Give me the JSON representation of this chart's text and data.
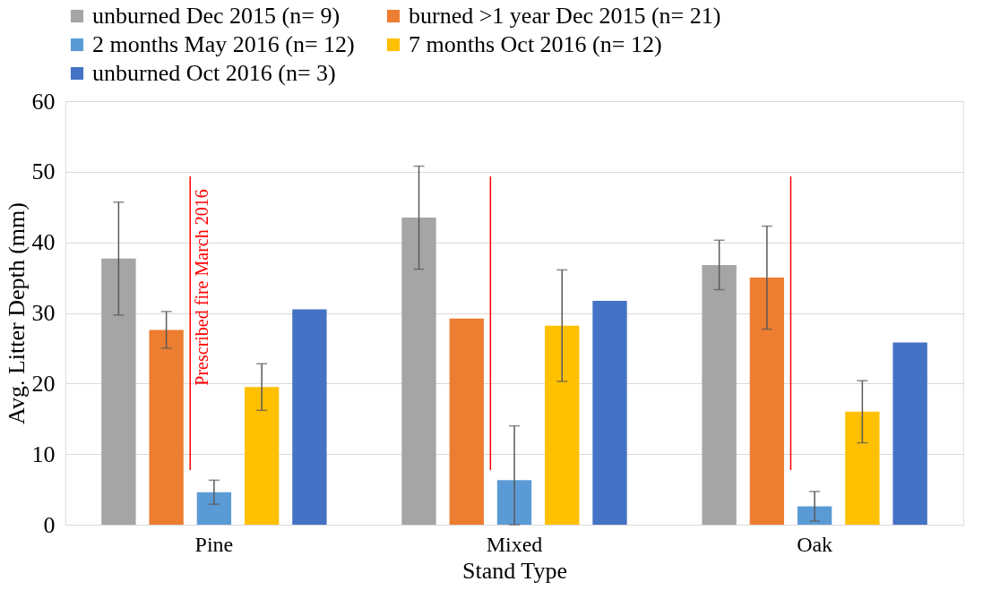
{
  "chart_data": {
    "type": "bar",
    "xlabel": "Stand Type",
    "ylabel": "Avg. Litter Depth (mm)",
    "categories": [
      "Pine",
      "Mixed",
      "Oak"
    ],
    "series": [
      {
        "name": "unburned Dec 2015  (n= 9)",
        "color": "#a5a5a5",
        "values": [
          37.7,
          43.5,
          36.8
        ],
        "errors": [
          8.0,
          7.3,
          3.5
        ]
      },
      {
        "name": "burned >1 year Dec 2015 (n= 21)",
        "color": "#ed7d31",
        "values": [
          27.6,
          29.2,
          35.0
        ],
        "errors": [
          2.6,
          null,
          7.3
        ]
      },
      {
        "name": "2 months May 2016 (n= 12)",
        "color": "#5b9bd5",
        "values": [
          4.6,
          6.3,
          2.6
        ],
        "errors": [
          1.7,
          [
            0,
            14.0
          ],
          2.1
        ]
      },
      {
        "name": "7 months Oct 2016 (n= 12)",
        "color": "#ffc000",
        "values": [
          19.5,
          28.2,
          16.0
        ],
        "errors": [
          3.3,
          7.9,
          4.4
        ]
      },
      {
        "name": "unburned Oct 2016  (n= 3)",
        "color": "#4472c4",
        "values": [
          30.5,
          31.7,
          25.8
        ],
        "errors": [
          null,
          null,
          null
        ]
      }
    ],
    "ylim": [
      0,
      60
    ],
    "yticks": [
      0,
      10,
      20,
      30,
      40,
      50,
      60
    ],
    "grid": "y",
    "legend": "top",
    "ref_lines": [
      {
        "axis": "x",
        "value": "Pine",
        "label": "Prescribed fire March 2016",
        "color": "#ff0000"
      },
      {
        "axis": "x",
        "value": "Mixed",
        "label": null,
        "color": "#ff0000"
      },
      {
        "axis": "x",
        "value": "Oak",
        "label": null,
        "color": "#ff0000"
      }
    ]
  }
}
